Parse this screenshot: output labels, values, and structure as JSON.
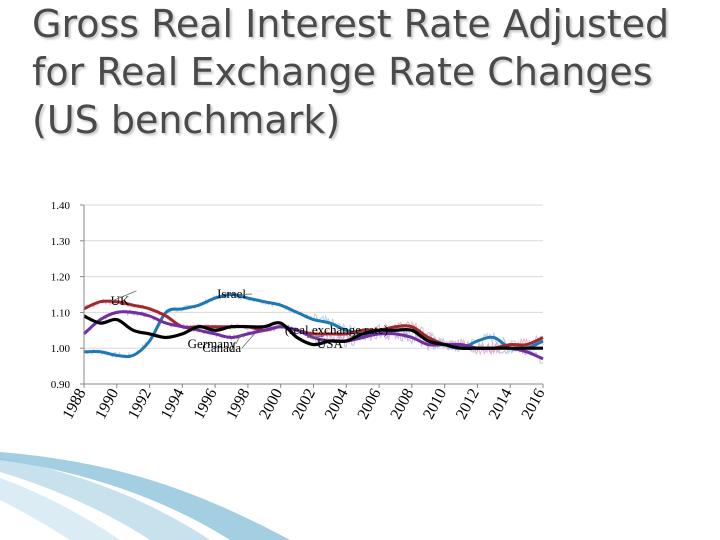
{
  "slide": {
    "title": "Gross Real Interest Rate Adjusted\nfor Real Exchange Rate Changes\n (US benchmark)"
  },
  "chart_data": {
    "type": "line",
    "title": "Gross Real Interest Rate Adjusted for Real Exchange Rate Changes (US benchmark)",
    "xlabel": "",
    "ylabel": "",
    "xlim": [
      1988,
      2016
    ],
    "ylim": [
      0.9,
      1.4
    ],
    "y_ticks": [
      "1.40",
      "1.30",
      "1.20",
      "1.10",
      "1.00",
      "0.90"
    ],
    "y_tick_values": [
      1.4,
      1.3,
      1.2,
      1.1,
      1.0,
      0.9
    ],
    "x_ticks": [
      "1988",
      "1990",
      "1992",
      "1994",
      "1996",
      "1998",
      "2000",
      "2002",
      "2004",
      "2006",
      "2008",
      "2010",
      "2012",
      "2014",
      "2016"
    ],
    "x_tick_values": [
      1988,
      1990,
      1992,
      1994,
      1996,
      1998,
      2000,
      2002,
      2004,
      2006,
      2008,
      2010,
      2012,
      2014,
      2016
    ],
    "grid": true,
    "legend": "none",
    "annotations": [
      {
        "text": "UK",
        "x": 1990.2,
        "y": 1.12
      },
      {
        "text": "Israel",
        "x": 1997.0,
        "y": 1.14
      },
      {
        "text": "Germany",
        "x": 1995.8,
        "y": 1.0
      },
      {
        "text": "Canada",
        "x": 1996.4,
        "y": 0.99
      },
      {
        "text": "USA",
        "x": 2003.0,
        "y": 1.0
      },
      {
        "text": "(real exchange rate)",
        "x": 2003.4,
        "y": 1.04
      }
    ],
    "series": [
      {
        "color": "#1f77b4",
        "x": [
          1988,
          1989,
          1990,
          1991,
          1992,
          1993,
          1994,
          1995,
          1996,
          1997,
          1998,
          1999,
          2000,
          2001,
          2002,
          2003,
          2004,
          2005,
          2006,
          2007,
          2008,
          2009,
          2010,
          2011,
          2012,
          2013,
          2014,
          2015,
          2016
        ],
        "y": [
          0.99,
          0.99,
          0.98,
          0.98,
          1.02,
          1.1,
          1.11,
          1.12,
          1.14,
          1.15,
          1.14,
          1.13,
          1.12,
          1.1,
          1.08,
          1.07,
          1.05,
          1.04,
          1.04,
          1.05,
          1.05,
          1.03,
          1.01,
          1.0,
          1.02,
          1.03,
          1.0,
          1.0,
          1.02
        ]
      },
      {
        "color": "#a02830",
        "x": [
          1988,
          1989,
          1990,
          1991,
          1992,
          1993,
          1994,
          1995,
          1996,
          1997,
          1998,
          1999,
          2000,
          2001,
          2002,
          2003,
          2004,
          2005,
          2006,
          2007,
          2008,
          2009,
          2010,
          2011,
          2012,
          2013,
          2014,
          2015,
          2016
        ],
        "y": [
          1.11,
          1.13,
          1.13,
          1.12,
          1.11,
          1.09,
          1.06,
          1.06,
          1.06,
          1.06,
          1.06,
          1.05,
          1.06,
          1.05,
          1.04,
          1.04,
          1.04,
          1.05,
          1.05,
          1.06,
          1.06,
          1.03,
          1.01,
          1.01,
          1.0,
          1.0,
          1.01,
          1.01,
          1.03
        ]
      },
      {
        "color": "#7030a0",
        "x": [
          1988,
          1989,
          1990,
          1991,
          1992,
          1993,
          1994,
          1995,
          1996,
          1997,
          1998,
          1999,
          2000,
          2001,
          2002,
          2003,
          2004,
          2005,
          2006,
          2007,
          2008,
          2009,
          2010,
          2011,
          2012,
          2013,
          2014,
          2015,
          2016
        ],
        "y": [
          1.04,
          1.08,
          1.1,
          1.1,
          1.09,
          1.07,
          1.06,
          1.05,
          1.04,
          1.03,
          1.04,
          1.05,
          1.06,
          1.05,
          1.03,
          1.02,
          1.02,
          1.03,
          1.04,
          1.04,
          1.03,
          1.01,
          1.01,
          1.01,
          1.0,
          1.0,
          1.0,
          0.99,
          0.97
        ]
      },
      {
        "color": "#000000",
        "x": [
          1988,
          1989,
          1990,
          1991,
          1992,
          1993,
          1994,
          1995,
          1996,
          1997,
          1998,
          1999,
          2000,
          2001,
          2002,
          2003,
          2004,
          2005,
          2006,
          2007,
          2008,
          2009,
          2010,
          2011,
          2012,
          2013,
          2014,
          2015,
          2016
        ],
        "y": [
          1.09,
          1.07,
          1.08,
          1.05,
          1.04,
          1.03,
          1.04,
          1.06,
          1.05,
          1.06,
          1.06,
          1.06,
          1.07,
          1.03,
          1.01,
          1.02,
          1.02,
          1.04,
          1.05,
          1.05,
          1.05,
          1.02,
          1.01,
          1.0,
          1.0,
          1.0,
          1.0,
          1.0,
          1.0
        ]
      }
    ]
  },
  "colors": {
    "axis": "#888888",
    "grid": "#d9d9d9",
    "noise_red": "#f0a8b0",
    "noise_purple": "#c8a8e0",
    "noise_blue": "#a8c8e8",
    "leader": "#666666",
    "footer_band": "#5aa6c8"
  }
}
